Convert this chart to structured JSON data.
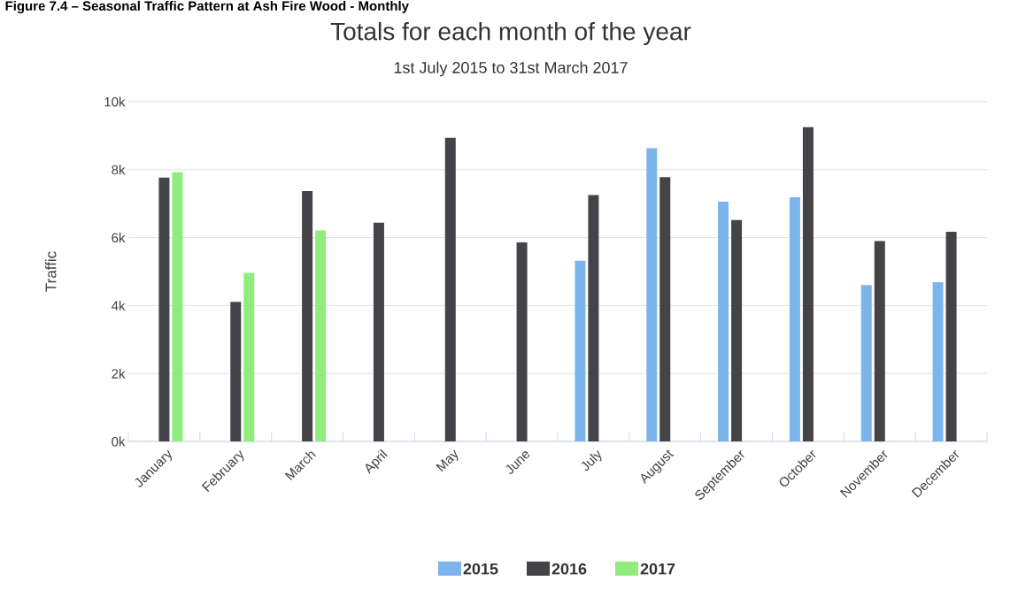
{
  "chart_data": {
    "type": "bar",
    "title": "Totals for each month of the year",
    "subtitle": "1st July 2015 to 31st March 2017",
    "ylabel": "Traffic",
    "annotations": [
      "Figure 7.4 – Seasonal Traffic Pattern at Ash Fire Wood - Monthly"
    ],
    "categories": [
      "January",
      "February",
      "March",
      "April",
      "May",
      "June",
      "July",
      "August",
      "September",
      "October",
      "November",
      "December"
    ],
    "series": [
      {
        "name": "2015",
        "color": "#7cb5ec",
        "values": [
          null,
          null,
          null,
          null,
          null,
          null,
          5320,
          8630,
          7060,
          7190,
          4600,
          4690
        ]
      },
      {
        "name": "2016",
        "color": "#434348",
        "values": [
          7770,
          4110,
          7370,
          6440,
          8940,
          5860,
          7250,
          7780,
          6520,
          9250,
          5900,
          6170
        ]
      },
      {
        "name": "2017",
        "color": "#90ed7d",
        "values": [
          7920,
          4960,
          6210,
          null,
          null,
          null,
          null,
          null,
          null,
          null,
          null,
          null
        ]
      }
    ],
    "ylim": [
      0,
      10000
    ],
    "yticks": [
      {
        "value": 0,
        "label": "0k"
      },
      {
        "value": 2000,
        "label": "2k"
      },
      {
        "value": 4000,
        "label": "4k"
      },
      {
        "value": 6000,
        "label": "6k"
      },
      {
        "value": 8000,
        "label": "8k"
      },
      {
        "value": 10000,
        "label": "10k"
      }
    ],
    "grid": "y",
    "legend": "bottom"
  }
}
